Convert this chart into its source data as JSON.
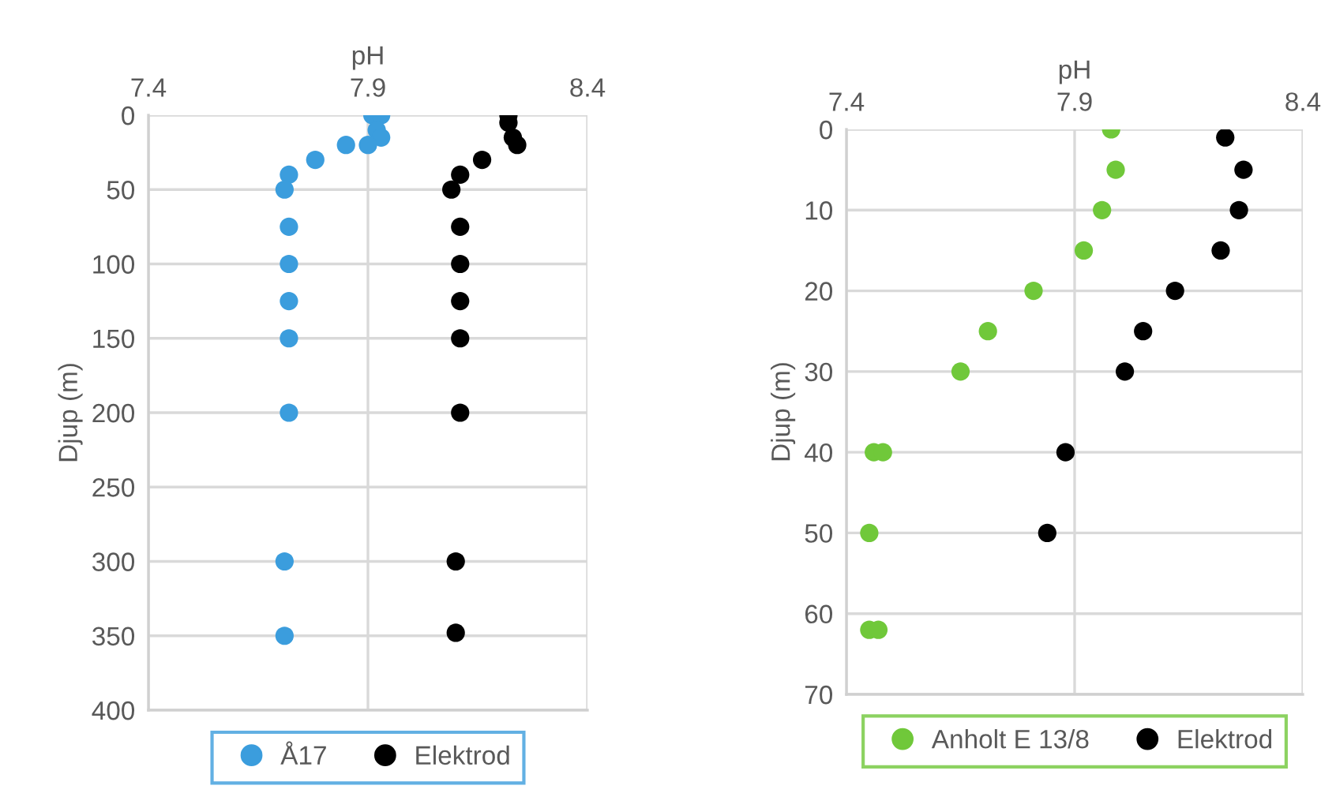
{
  "chart_data": [
    {
      "type": "scatter",
      "xlabel": "pH",
      "ylabel": "Djup (m)",
      "xlim": [
        7.4,
        8.4
      ],
      "xticks": [
        7.4,
        7.9,
        8.4
      ],
      "ylim": [
        400,
        0
      ],
      "yticks": [
        0,
        50,
        100,
        150,
        200,
        250,
        300,
        350,
        400
      ],
      "grid": true,
      "legend": "bottom",
      "marker": "circle",
      "series": [
        {
          "name": "Å17",
          "color": "#3b9ddd",
          "x": [
            7.91,
            7.93,
            7.92,
            7.93,
            7.85,
            7.9,
            7.78,
            7.72,
            7.71,
            7.72,
            7.72,
            7.72,
            7.72,
            7.72,
            7.71,
            7.71
          ],
          "values": [
            0,
            0,
            10,
            15,
            20,
            20,
            30,
            40,
            50,
            75,
            100,
            125,
            150,
            200,
            300,
            350
          ]
        },
        {
          "name": "Elektrod",
          "color": "#000000",
          "x": [
            8.22,
            8.22,
            8.23,
            8.24,
            8.16,
            8.11,
            8.09,
            8.11,
            8.11,
            8.11,
            8.11,
            8.11,
            8.1,
            8.1
          ],
          "values": [
            0,
            5,
            15,
            20,
            30,
            40,
            50,
            75,
            100,
            125,
            150,
            200,
            300,
            348
          ]
        }
      ]
    },
    {
      "type": "scatter",
      "xlabel": "pH",
      "ylabel": "Djup (m)",
      "xlim": [
        7.4,
        8.4
      ],
      "xticks": [
        7.4,
        7.9,
        8.4
      ],
      "ylim": [
        70,
        0
      ],
      "yticks": [
        0,
        10,
        20,
        30,
        40,
        50,
        60,
        70
      ],
      "grid": true,
      "legend": "bottom",
      "marker": "circle",
      "series": [
        {
          "name": "Anholt E 13/8",
          "color": "#70c83a",
          "x": [
            7.98,
            7.99,
            7.96,
            7.92,
            7.81,
            7.71,
            7.65,
            7.46,
            7.48,
            7.45,
            7.45,
            7.47
          ],
          "values": [
            0,
            5,
            10,
            15,
            20,
            25,
            30,
            40,
            40,
            50,
            62,
            62
          ]
        },
        {
          "name": "Elektrod",
          "color": "#000000",
          "x": [
            8.23,
            8.27,
            8.26,
            8.22,
            8.12,
            8.05,
            8.01,
            7.88,
            7.84
          ],
          "values": [
            1,
            5,
            10,
            15,
            20,
            25,
            30,
            40,
            50
          ]
        }
      ]
    }
  ]
}
